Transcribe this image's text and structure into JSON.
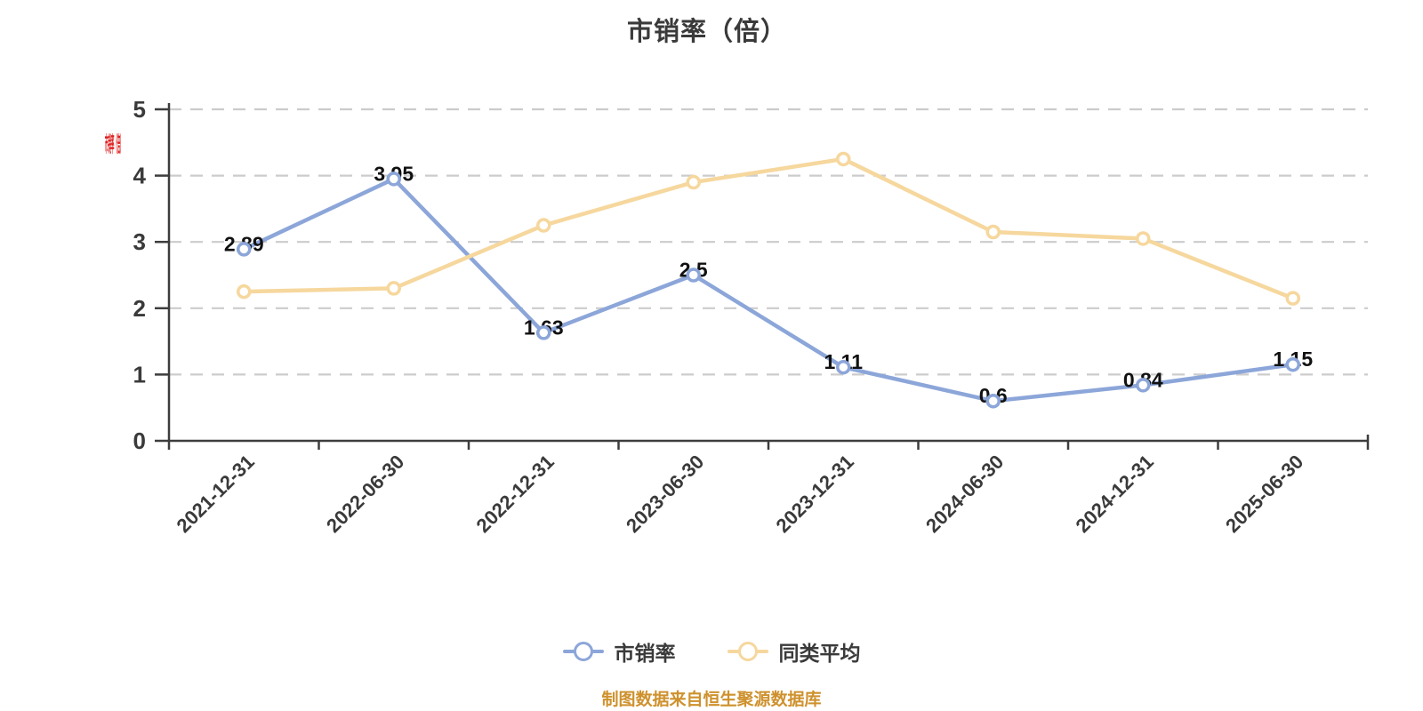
{
  "title": "市销率（倍）",
  "y_axis_name": "市销率（倍）",
  "source_note": "制图数据来自恒生聚源数据库",
  "legend": [
    {
      "label": "市销率",
      "color": "#8CA6D9"
    },
    {
      "label": "同类平均",
      "color": "#F6D79D"
    }
  ],
  "colors": {
    "title_text": "#3A3A3A",
    "axis": "#3D3D3D",
    "tick_label": "#3A3A3A",
    "grid": "#CCCCCC",
    "value_label": "#111111",
    "source_text": "#CE912D",
    "axis_name_red": "#DE1F1F",
    "marker_fill": "#FFFFFF"
  },
  "chart_data": {
    "type": "line",
    "title": "市销率（倍）",
    "xlabel": "",
    "ylabel": "市销率（倍）",
    "categories": [
      "2021-12-31",
      "2022-06-30",
      "2022-12-31",
      "2023-06-30",
      "2023-12-31",
      "2024-06-30",
      "2024-12-31",
      "2025-06-30"
    ],
    "series": [
      {
        "name": "市销率",
        "color": "#8CA6D9",
        "values": [
          2.89,
          3.95,
          1.63,
          2.5,
          1.11,
          0.6,
          0.84,
          1.15
        ],
        "labels_shown": true
      },
      {
        "name": "同类平均",
        "color": "#F6D79D",
        "values": [
          2.25,
          2.3,
          3.25,
          3.9,
          4.25,
          3.15,
          3.05,
          2.15
        ],
        "labels_shown": false
      }
    ],
    "ylim": [
      0,
      5
    ],
    "y_ticks": [
      0,
      1,
      2,
      3,
      4,
      5
    ],
    "grid": "horizontal-dashed",
    "legend_position": "bottom",
    "x_label_rotation": -45
  }
}
